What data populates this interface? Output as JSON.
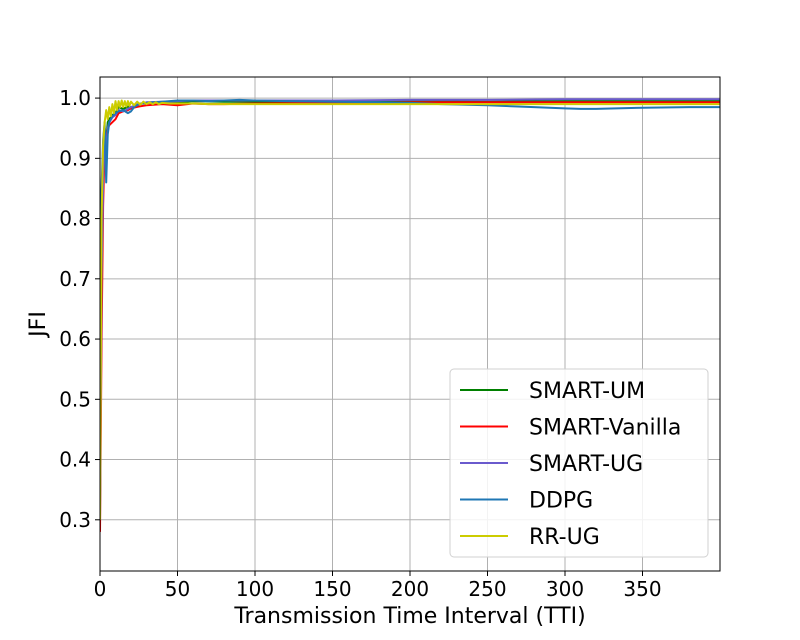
{
  "chart_data": {
    "type": "line",
    "title": "",
    "xlabel": "Transmission Time Interval (TTI)",
    "ylabel": "JFI",
    "xlim": [
      0,
      400
    ],
    "ylim": [
      0.215,
      1.035
    ],
    "xticks": [
      "0",
      "50",
      "100",
      "150",
      "200",
      "250",
      "300",
      "350"
    ],
    "yticks": [
      "0.3",
      "0.4",
      "0.5",
      "0.6",
      "0.7",
      "0.8",
      "0.9",
      "1.0"
    ],
    "grid": true,
    "legend_position": "lower-right",
    "series": [
      {
        "name": "SMART-UM",
        "color": "#008000",
        "x": [
          0,
          1,
          2,
          3,
          4,
          5,
          6,
          8,
          10,
          12,
          15,
          18,
          20,
          25,
          30,
          40,
          50,
          60,
          80,
          100,
          150,
          200,
          250,
          300,
          350,
          400
        ],
        "y": [
          0.33,
          0.75,
          0.9,
          0.95,
          0.93,
          0.96,
          0.965,
          0.972,
          0.975,
          0.985,
          0.982,
          0.986,
          0.985,
          0.99,
          0.992,
          0.993,
          0.993,
          0.995,
          0.994,
          0.994,
          0.995,
          0.995,
          0.994,
          0.995,
          0.995,
          0.995
        ]
      },
      {
        "name": "SMART-Vanilla",
        "color": "#ff0000",
        "x": [
          0,
          1,
          2,
          3,
          4,
          5,
          6,
          8,
          10,
          12,
          15,
          18,
          20,
          25,
          30,
          40,
          50,
          60,
          70,
          80,
          100,
          150,
          200,
          250,
          300,
          350,
          400
        ],
        "y": [
          0.28,
          0.6,
          0.82,
          0.92,
          0.93,
          0.95,
          0.955,
          0.96,
          0.965,
          0.975,
          0.978,
          0.98,
          0.983,
          0.986,
          0.988,
          0.99,
          0.988,
          0.991,
          0.99,
          0.99,
          0.991,
          0.992,
          0.993,
          0.993,
          0.993,
          0.993,
          0.993
        ]
      },
      {
        "name": "SMART-UG",
        "color": "#6a5acd",
        "x": [
          0,
          1,
          2,
          3,
          4,
          5,
          6,
          8,
          10,
          12,
          15,
          18,
          20,
          25,
          30,
          40,
          50,
          60,
          80,
          100,
          150,
          200,
          250,
          300,
          350,
          400
        ],
        "y": [
          0.3,
          0.7,
          0.86,
          0.94,
          0.92,
          0.95,
          0.96,
          0.968,
          0.972,
          0.98,
          0.978,
          0.982,
          0.985,
          0.99,
          0.993,
          0.994,
          0.995,
          0.996,
          0.996,
          0.996,
          0.996,
          0.997,
          0.997,
          0.998,
          0.998,
          0.998
        ]
      },
      {
        "name": "DDPG",
        "color": "#1f77b4",
        "x": [
          0,
          1,
          2,
          3,
          4,
          5,
          6,
          8,
          10,
          12,
          15,
          18,
          20,
          22,
          25,
          30,
          40,
          50,
          60,
          70,
          80,
          90,
          100,
          120,
          150,
          180,
          200,
          220,
          250,
          280,
          300,
          310,
          320,
          350,
          380,
          400
        ],
        "y": [
          0.72,
          0.85,
          0.93,
          0.96,
          0.86,
          0.94,
          0.96,
          0.97,
          0.975,
          0.978,
          0.98,
          0.975,
          0.978,
          0.985,
          0.99,
          0.992,
          0.994,
          0.996,
          0.996,
          0.995,
          0.996,
          0.997,
          0.996,
          0.995,
          0.994,
          0.993,
          0.992,
          0.99,
          0.988,
          0.985,
          0.983,
          0.982,
          0.982,
          0.984,
          0.985,
          0.985
        ]
      },
      {
        "name": "RR-UG",
        "color": "#cccc00",
        "x": [
          0,
          1,
          2,
          3,
          4,
          5,
          6,
          7,
          8,
          9,
          10,
          11,
          12,
          13,
          14,
          15,
          16,
          17,
          18,
          19,
          20,
          22,
          24,
          26,
          28,
          30,
          32,
          34,
          36,
          38,
          40,
          45,
          50,
          60,
          70,
          80,
          100,
          150,
          200,
          250,
          300,
          350,
          400
        ],
        "y": [
          0.3,
          0.8,
          0.92,
          0.96,
          0.98,
          0.965,
          0.985,
          0.97,
          0.99,
          0.975,
          0.995,
          0.98,
          0.995,
          0.985,
          0.996,
          0.985,
          0.995,
          0.986,
          0.995,
          0.987,
          0.994,
          0.988,
          0.994,
          0.989,
          0.994,
          0.99,
          0.993,
          0.99,
          0.993,
          0.99,
          0.992,
          0.991,
          0.991,
          0.991,
          0.99,
          0.99,
          0.99,
          0.99,
          0.99,
          0.99,
          0.99,
          0.99,
          0.99
        ]
      }
    ]
  }
}
